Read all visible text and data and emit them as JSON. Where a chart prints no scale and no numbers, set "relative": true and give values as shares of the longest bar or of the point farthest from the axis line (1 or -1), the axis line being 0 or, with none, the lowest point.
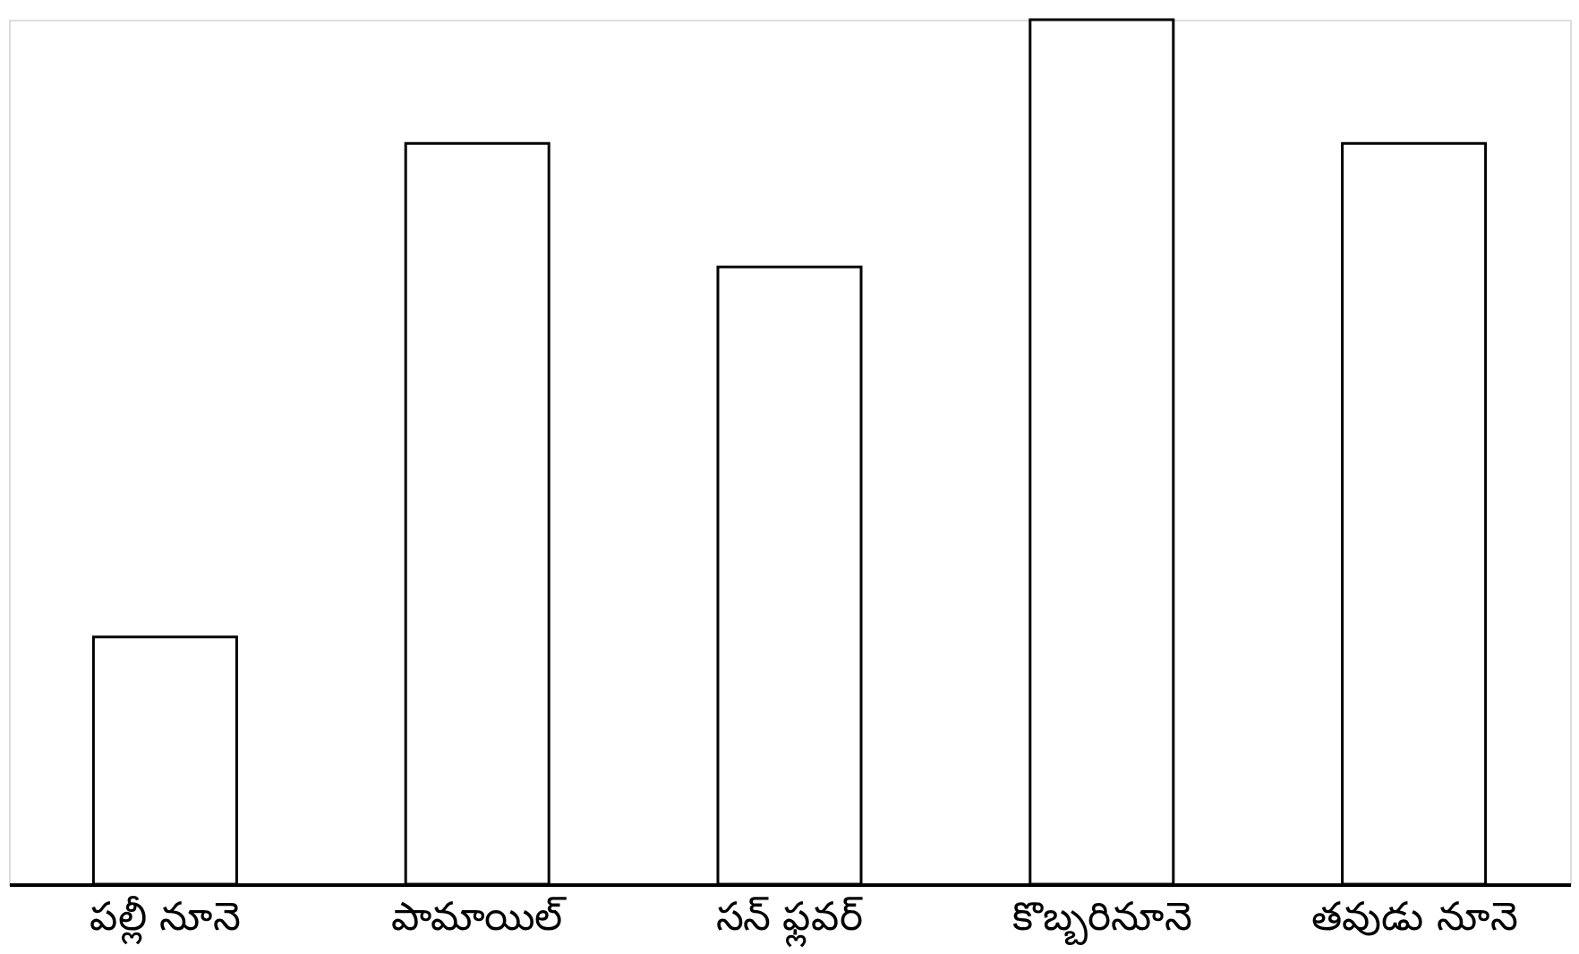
{
  "chart_data": {
    "type": "bar",
    "relative": true,
    "categories": [
      "పల్లీ నూనె",
      "పామాయిల్",
      "సన్ ఫ్లవర్",
      "కొబ్బరినూనె",
      "తవుడు నూనె"
    ],
    "values": [
      0.286,
      0.857,
      0.714,
      1,
      0.857
    ],
    "color": "#ffffff",
    "grid": false
  }
}
